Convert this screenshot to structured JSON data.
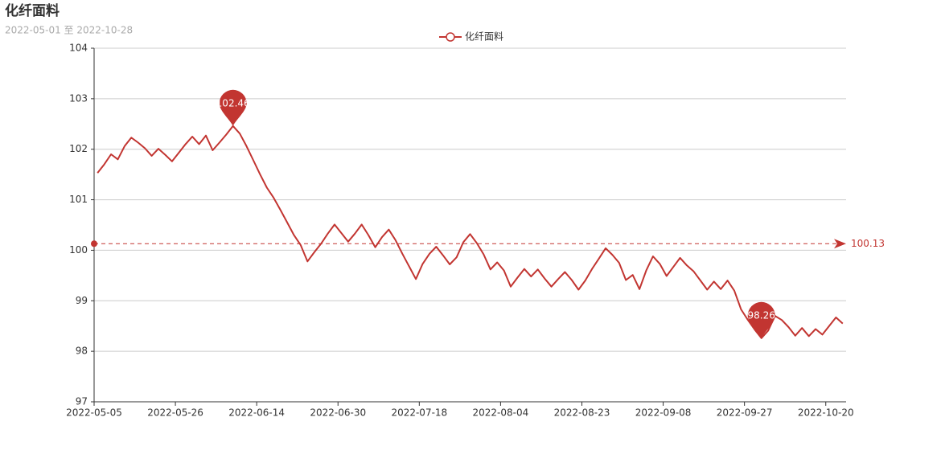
{
  "chart_data": {
    "type": "line",
    "title": "化纤面料",
    "subtitle": "2022-05-01 至 2022-10-28",
    "categories": [
      "2022-05-05",
      null,
      null,
      null,
      null,
      null,
      null,
      null,
      null,
      null,
      null,
      null,
      "2022-05-26",
      null,
      null,
      null,
      null,
      null,
      null,
      null,
      null,
      null,
      null,
      null,
      "2022-06-14",
      null,
      null,
      null,
      null,
      null,
      null,
      null,
      null,
      null,
      null,
      null,
      "2022-06-30",
      null,
      null,
      null,
      null,
      null,
      null,
      null,
      null,
      null,
      null,
      null,
      "2022-07-18",
      null,
      null,
      null,
      null,
      null,
      null,
      null,
      null,
      null,
      null,
      null,
      "2022-08-04",
      null,
      null,
      null,
      null,
      null,
      null,
      null,
      null,
      null,
      null,
      null,
      "2022-08-23",
      null,
      null,
      null,
      null,
      null,
      null,
      null,
      null,
      null,
      null,
      null,
      "2022-09-08",
      null,
      null,
      null,
      null,
      null,
      null,
      null,
      null,
      null,
      null,
      null,
      "2022-09-27",
      null,
      null,
      null,
      null,
      null,
      null,
      null,
      null,
      null,
      null,
      null,
      "2022-10-20",
      null,
      null
    ],
    "series": [
      {
        "name": "化纤面料",
        "color": "#c23531",
        "values": [
          101.53,
          101.7,
          101.9,
          101.8,
          102.06,
          102.23,
          102.13,
          102.02,
          101.87,
          102.01,
          101.89,
          101.76,
          101.93,
          102.1,
          102.25,
          102.1,
          102.27,
          101.98,
          102.13,
          102.29,
          102.46,
          102.31,
          102.06,
          101.78,
          101.5,
          101.24,
          101.04,
          100.8,
          100.55,
          100.3,
          100.1,
          99.78,
          99.96,
          100.13,
          100.33,
          100.51,
          100.34,
          100.17,
          100.33,
          100.51,
          100.3,
          100.06,
          100.26,
          100.41,
          100.2,
          99.93,
          99.68,
          99.43,
          99.73,
          99.93,
          100.07,
          99.9,
          99.72,
          99.86,
          100.16,
          100.32,
          100.14,
          99.92,
          99.62,
          99.76,
          99.6,
          99.28,
          99.46,
          99.63,
          99.48,
          99.62,
          99.44,
          99.28,
          99.43,
          99.57,
          99.41,
          99.22,
          99.4,
          99.63,
          99.83,
          100.04,
          99.91,
          99.75,
          99.41,
          99.51,
          99.23,
          99.6,
          99.88,
          99.73,
          99.49,
          99.67,
          99.85,
          99.7,
          99.58,
          99.4,
          99.22,
          99.38,
          99.23,
          99.4,
          99.2,
          98.83,
          98.62,
          98.43,
          98.26,
          98.41,
          98.7,
          98.62,
          98.48,
          98.31,
          98.46,
          98.3,
          98.44,
          98.33,
          98.5,
          98.67,
          98.55
        ]
      }
    ],
    "mark_line": {
      "value": 100.13
    },
    "ylim": [
      97,
      104
    ],
    "yticks": [
      97,
      98,
      99,
      100,
      101,
      102,
      103,
      104
    ],
    "grid": true
  }
}
